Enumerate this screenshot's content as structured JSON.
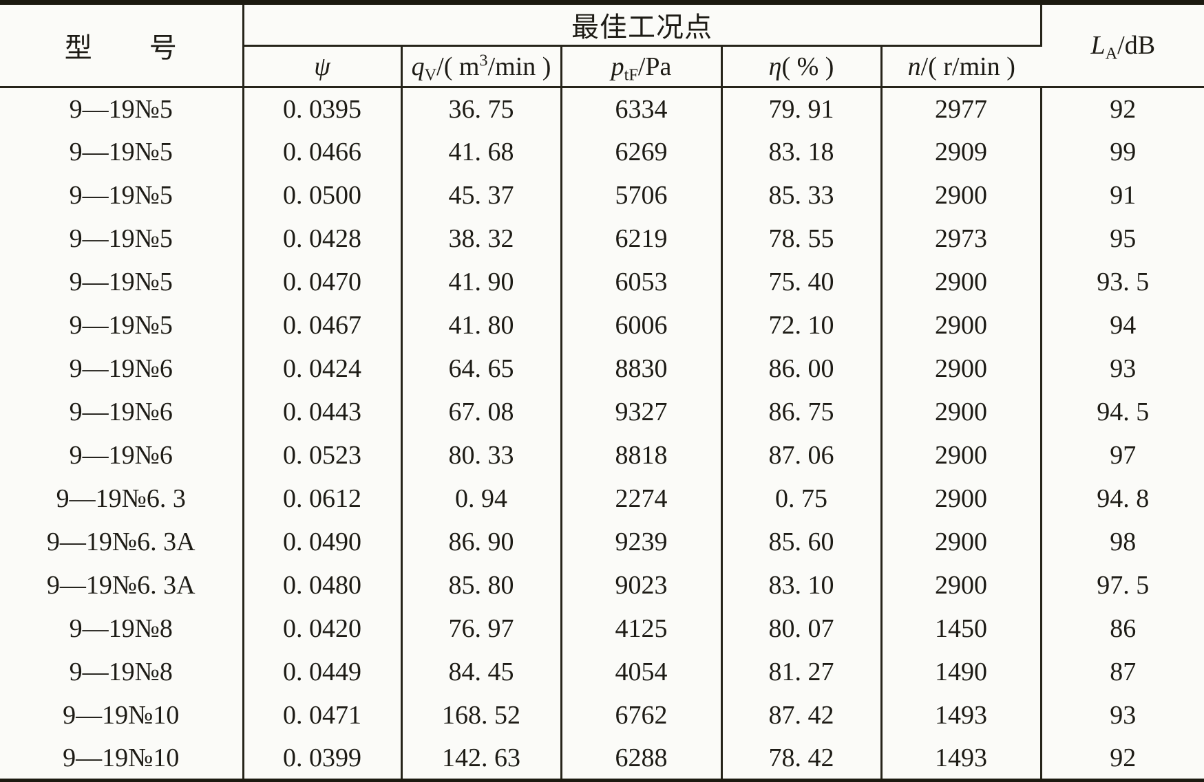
{
  "header": {
    "model_label": "型　　号",
    "best_point_label": "最佳工况点",
    "cols": {
      "psi": {
        "base": "ψ"
      },
      "qv": {
        "base": "q",
        "sub": "V",
        "mid": "/( m",
        "sup": "3",
        "end": "/min )"
      },
      "ptf": {
        "base": "p",
        "sub": "tF",
        "end": "/Pa"
      },
      "eta": {
        "base": "η",
        "end": "( % )"
      },
      "n": {
        "base": "n",
        "end": "/( r/min )"
      },
      "la": {
        "base": "L",
        "sub": "A",
        "end": "/dB"
      }
    }
  },
  "rows": [
    [
      "9—19№5",
      "0. 0395",
      "36. 75",
      "6334",
      "79. 91",
      "2977",
      "92"
    ],
    [
      "9—19№5",
      "0. 0466",
      "41. 68",
      "6269",
      "83. 18",
      "2909",
      "99"
    ],
    [
      "9—19№5",
      "0. 0500",
      "45. 37",
      "5706",
      "85. 33",
      "2900",
      "91"
    ],
    [
      "9—19№5",
      "0. 0428",
      "38. 32",
      "6219",
      "78. 55",
      "2973",
      "95"
    ],
    [
      "9—19№5",
      "0. 0470",
      "41. 90",
      "6053",
      "75. 40",
      "2900",
      "93. 5"
    ],
    [
      "9—19№5",
      "0. 0467",
      "41. 80",
      "6006",
      "72. 10",
      "2900",
      "94"
    ],
    [
      "9—19№6",
      "0. 0424",
      "64. 65",
      "8830",
      "86. 00",
      "2900",
      "93"
    ],
    [
      "9—19№6",
      "0. 0443",
      "67. 08",
      "9327",
      "86. 75",
      "2900",
      "94. 5"
    ],
    [
      "9—19№6",
      "0. 0523",
      "80. 33",
      "8818",
      "87. 06",
      "2900",
      "97"
    ],
    [
      "9—19№6. 3",
      "0. 0612",
      "0. 94",
      "2274",
      "0. 75",
      "2900",
      "94. 8"
    ],
    [
      "9—19№6. 3A",
      "0. 0490",
      "86. 90",
      "9239",
      "85. 60",
      "2900",
      "98"
    ],
    [
      "9—19№6. 3A",
      "0. 0480",
      "85. 80",
      "9023",
      "83. 10",
      "2900",
      "97. 5"
    ],
    [
      "9—19№8",
      "0. 0420",
      "76. 97",
      "4125",
      "80. 07",
      "1450",
      "86"
    ],
    [
      "9—19№8",
      "0. 0449",
      "84. 45",
      "4054",
      "81. 27",
      "1490",
      "87"
    ],
    [
      "9—19№10",
      "0. 0471",
      "168. 52",
      "6762",
      "87. 42",
      "1493",
      "93"
    ],
    [
      "9—19№10",
      "0. 0399",
      "142. 63",
      "6288",
      "78. 42",
      "1493",
      "92"
    ]
  ],
  "colors": {
    "rule": "#26241a",
    "heavy_rule": "#1c1a10",
    "text": "#1d1b15",
    "background": "#fbfbf8"
  }
}
